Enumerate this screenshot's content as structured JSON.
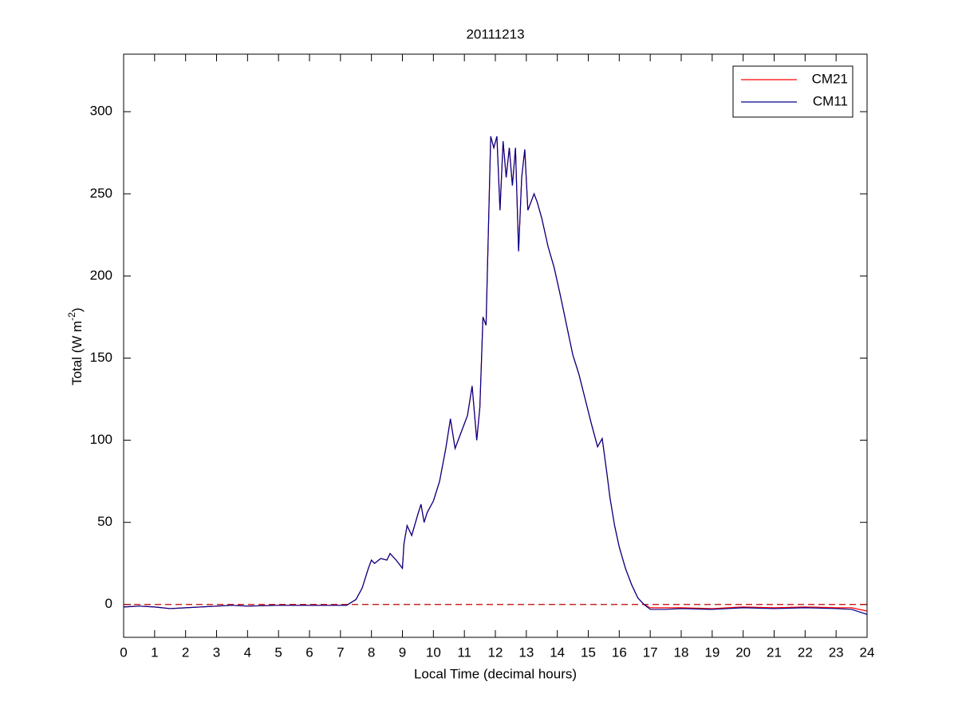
{
  "chart_data": {
    "type": "line",
    "title": "20111213",
    "xlabel": "Local Time (decimal hours)",
    "ylabel": {
      "text": "Total (W m",
      "sup": "-2",
      "end": ")"
    },
    "x": [
      0,
      0.5,
      1,
      1.5,
      2,
      3,
      3.5,
      4,
      5,
      6,
      7,
      7.2,
      7.5,
      7.7,
      7.9,
      8.0,
      8.1,
      8.3,
      8.5,
      8.6,
      8.8,
      9.0,
      9.05,
      9.15,
      9.3,
      9.5,
      9.6,
      9.7,
      9.8,
      10.0,
      10.2,
      10.4,
      10.55,
      10.7,
      10.9,
      11.1,
      11.25,
      11.4,
      11.5,
      11.6,
      11.7,
      11.85,
      11.95,
      12.05,
      12.15,
      12.25,
      12.35,
      12.45,
      12.55,
      12.65,
      12.75,
      12.85,
      12.95,
      13.05,
      13.25,
      13.35,
      13.5,
      13.7,
      13.9,
      14.1,
      14.3,
      14.5,
      14.7,
      14.9,
      15.1,
      15.3,
      15.45,
      15.6,
      15.7,
      15.85,
      16.0,
      16.2,
      16.4,
      16.6,
      16.8,
      17.0,
      17.5,
      18,
      19,
      19.5,
      20,
      21,
      22,
      23,
      23.5,
      24
    ],
    "series": [
      {
        "name": "CM21",
        "color": "#ff0000",
        "values": [
          -1.5,
          -1,
          -1.5,
          -2.5,
          -2,
          -1,
          -0.5,
          -1,
          -0.5,
          -0.5,
          -0.5,
          -0.5,
          3,
          10,
          22,
          27,
          25,
          28,
          27,
          31,
          27,
          22,
          37,
          48,
          42,
          55,
          61,
          50,
          56,
          63,
          75,
          95,
          113,
          95,
          105,
          115,
          133,
          100,
          120,
          175,
          170,
          285,
          278,
          285,
          240,
          282,
          260,
          278,
          255,
          278,
          215,
          260,
          277,
          240,
          250,
          245,
          235,
          218,
          205,
          188,
          170,
          152,
          140,
          125,
          110,
          96,
          101,
          80,
          65,
          48,
          35,
          22,
          12,
          4,
          0,
          -2,
          -2,
          -2,
          -2.5,
          -2,
          -1.5,
          -2,
          -1.5,
          -2,
          -2,
          -4
        ]
      },
      {
        "name": "CM11",
        "color": "#00008b",
        "values": [
          -1.5,
          -1,
          -1.5,
          -2.5,
          -2,
          -1,
          -0.5,
          -1,
          -0.5,
          -0.5,
          -0.5,
          -0.5,
          3,
          10,
          22,
          27,
          25,
          28,
          27,
          31,
          27,
          22,
          37,
          48,
          42,
          55,
          61,
          50,
          56,
          63,
          75,
          95,
          113,
          95,
          105,
          115,
          133,
          100,
          120,
          175,
          170,
          285,
          278,
          285,
          240,
          282,
          260,
          278,
          255,
          278,
          215,
          260,
          277,
          240,
          250,
          245,
          235,
          218,
          205,
          188,
          170,
          152,
          140,
          125,
          110,
          96,
          101,
          80,
          65,
          48,
          35,
          22,
          12,
          4,
          0,
          -3,
          -3,
          -2.5,
          -3,
          -2.5,
          -2,
          -2.5,
          -2,
          -2.5,
          -3,
          -6
        ]
      }
    ],
    "reference_line": {
      "value": 0,
      "color": "#c00000",
      "style": "dashed"
    },
    "xlim": [
      0,
      24
    ],
    "xticks": [
      0,
      1,
      2,
      3,
      4,
      5,
      6,
      7,
      8,
      9,
      10,
      11,
      12,
      13,
      14,
      15,
      16,
      17,
      18,
      19,
      20,
      21,
      22,
      23,
      24
    ],
    "ylim": [
      -20,
      335
    ],
    "yticks": [
      0,
      50,
      100,
      150,
      200,
      250,
      300
    ],
    "legend": "northeast",
    "grid": false
  }
}
